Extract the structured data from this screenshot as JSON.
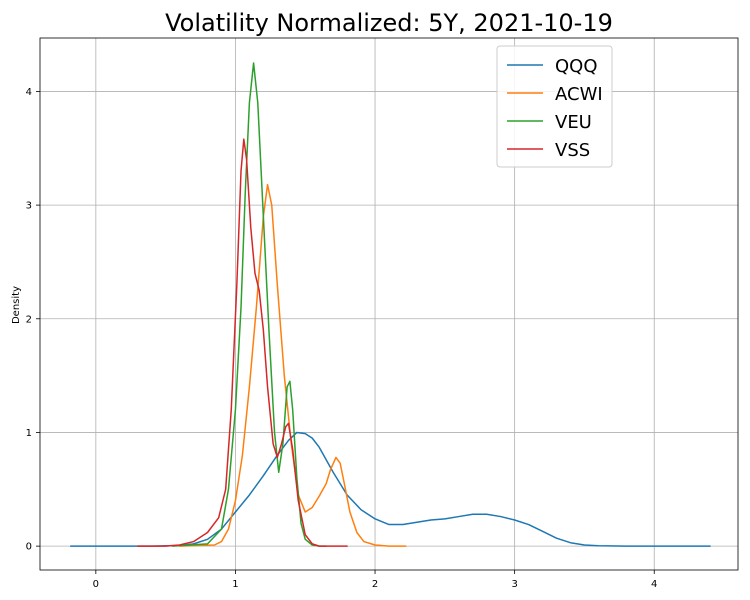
{
  "chart_data": {
    "type": "line",
    "title": "Volatility Normalized: 5Y, 2021-10-19",
    "xlabel": "",
    "ylabel": "Density",
    "xlim": [
      -0.4,
      4.6
    ],
    "ylim": [
      -0.21,
      4.47
    ],
    "x_ticks": [
      0,
      1,
      2,
      3,
      4
    ],
    "y_ticks": [
      0,
      1,
      2,
      3,
      4
    ],
    "grid": true,
    "legend_position": "top-right",
    "series": [
      {
        "name": "QQQ",
        "color": "#1f77b4",
        "points": [
          [
            -0.18,
            0
          ],
          [
            0.4,
            0
          ],
          [
            0.6,
            0.005
          ],
          [
            0.7,
            0.02
          ],
          [
            0.8,
            0.06
          ],
          [
            0.9,
            0.15
          ],
          [
            1.0,
            0.3
          ],
          [
            1.1,
            0.45
          ],
          [
            1.2,
            0.62
          ],
          [
            1.3,
            0.8
          ],
          [
            1.38,
            0.93
          ],
          [
            1.44,
            1.0
          ],
          [
            1.5,
            0.99
          ],
          [
            1.55,
            0.95
          ],
          [
            1.6,
            0.87
          ],
          [
            1.7,
            0.65
          ],
          [
            1.8,
            0.45
          ],
          [
            1.9,
            0.32
          ],
          [
            2.0,
            0.24
          ],
          [
            2.1,
            0.19
          ],
          [
            2.2,
            0.19
          ],
          [
            2.3,
            0.21
          ],
          [
            2.4,
            0.23
          ],
          [
            2.5,
            0.24
          ],
          [
            2.6,
            0.26
          ],
          [
            2.7,
            0.28
          ],
          [
            2.8,
            0.28
          ],
          [
            2.9,
            0.26
          ],
          [
            3.0,
            0.23
          ],
          [
            3.1,
            0.19
          ],
          [
            3.2,
            0.13
          ],
          [
            3.3,
            0.07
          ],
          [
            3.4,
            0.03
          ],
          [
            3.5,
            0.01
          ],
          [
            3.6,
            0.003
          ],
          [
            3.8,
            0
          ],
          [
            4.4,
            0
          ]
        ]
      },
      {
        "name": "ACWI",
        "color": "#ff7f0e",
        "points": [
          [
            0.6,
            0
          ],
          [
            0.85,
            0.01
          ],
          [
            0.9,
            0.04
          ],
          [
            0.95,
            0.15
          ],
          [
            1.0,
            0.4
          ],
          [
            1.05,
            0.8
          ],
          [
            1.1,
            1.4
          ],
          [
            1.15,
            2.1
          ],
          [
            1.2,
            2.9
          ],
          [
            1.23,
            3.18
          ],
          [
            1.26,
            3.0
          ],
          [
            1.3,
            2.3
          ],
          [
            1.35,
            1.5
          ],
          [
            1.4,
            0.9
          ],
          [
            1.45,
            0.45
          ],
          [
            1.5,
            0.3
          ],
          [
            1.55,
            0.34
          ],
          [
            1.6,
            0.44
          ],
          [
            1.65,
            0.55
          ],
          [
            1.68,
            0.67
          ],
          [
            1.72,
            0.78
          ],
          [
            1.75,
            0.73
          ],
          [
            1.78,
            0.55
          ],
          [
            1.82,
            0.3
          ],
          [
            1.87,
            0.12
          ],
          [
            1.92,
            0.04
          ],
          [
            2.0,
            0.01
          ],
          [
            2.1,
            0
          ],
          [
            2.22,
            0
          ]
        ]
      },
      {
        "name": "VEU",
        "color": "#2ca02c",
        "points": [
          [
            0.55,
            0
          ],
          [
            0.8,
            0.02
          ],
          [
            0.9,
            0.15
          ],
          [
            0.95,
            0.5
          ],
          [
            1.0,
            1.2
          ],
          [
            1.04,
            2.1
          ],
          [
            1.07,
            3.1
          ],
          [
            1.1,
            3.9
          ],
          [
            1.13,
            4.25
          ],
          [
            1.16,
            3.9
          ],
          [
            1.2,
            2.9
          ],
          [
            1.24,
            1.9
          ],
          [
            1.28,
            1.0
          ],
          [
            1.31,
            0.65
          ],
          [
            1.34,
            0.9
          ],
          [
            1.37,
            1.4
          ],
          [
            1.39,
            1.45
          ],
          [
            1.41,
            1.2
          ],
          [
            1.44,
            0.6
          ],
          [
            1.47,
            0.2
          ],
          [
            1.5,
            0.06
          ],
          [
            1.55,
            0.01
          ],
          [
            1.6,
            0
          ],
          [
            1.65,
            0
          ]
        ]
      },
      {
        "name": "VSS",
        "color": "#d62728",
        "points": [
          [
            0.3,
            0
          ],
          [
            0.5,
            0
          ],
          [
            0.6,
            0.01
          ],
          [
            0.7,
            0.04
          ],
          [
            0.8,
            0.12
          ],
          [
            0.88,
            0.25
          ],
          [
            0.93,
            0.5
          ],
          [
            0.97,
            1.2
          ],
          [
            1.01,
            2.3
          ],
          [
            1.04,
            3.3
          ],
          [
            1.06,
            3.58
          ],
          [
            1.08,
            3.4
          ],
          [
            1.11,
            2.8
          ],
          [
            1.14,
            2.4
          ],
          [
            1.17,
            2.25
          ],
          [
            1.2,
            1.9
          ],
          [
            1.23,
            1.4
          ],
          [
            1.27,
            0.9
          ],
          [
            1.3,
            0.78
          ],
          [
            1.33,
            0.9
          ],
          [
            1.36,
            1.05
          ],
          [
            1.38,
            1.08
          ],
          [
            1.41,
            0.85
          ],
          [
            1.45,
            0.4
          ],
          [
            1.5,
            0.1
          ],
          [
            1.55,
            0.02
          ],
          [
            1.6,
            0
          ],
          [
            1.8,
            0
          ]
        ]
      }
    ]
  }
}
